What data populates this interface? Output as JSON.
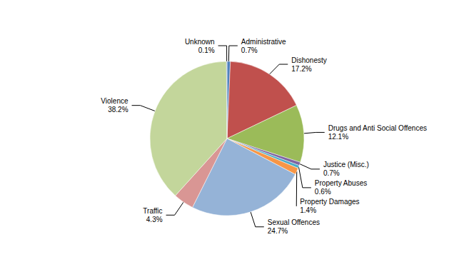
{
  "chart_data": {
    "type": "pie",
    "categories": [
      "Administrative",
      "Dishonesty",
      "Drugs and Anti Social Offences",
      "Justice (Misc.)",
      "Property Abuses",
      "Property Damages",
      "Sexual Offences",
      "Traffic",
      "Violence",
      "Unknown"
    ],
    "values": [
      0.7,
      17.2,
      12.1,
      0.7,
      0.6,
      1.4,
      24.7,
      4.3,
      38.2,
      0.1
    ],
    "value_labels": [
      "0.7%",
      "17.2%",
      "12.1%",
      "0.7%",
      "0.6%",
      "1.4%",
      "24.7%",
      "4.3%",
      "38.2%",
      "0.1%"
    ],
    "colors": [
      "#4F81BD",
      "#C0504D",
      "#9BBB59",
      "#8064A2",
      "#4BACC6",
      "#F79646",
      "#95B3D7",
      "#D99694",
      "#C3D69B",
      "#4F81BD"
    ],
    "data_labels": true
  }
}
